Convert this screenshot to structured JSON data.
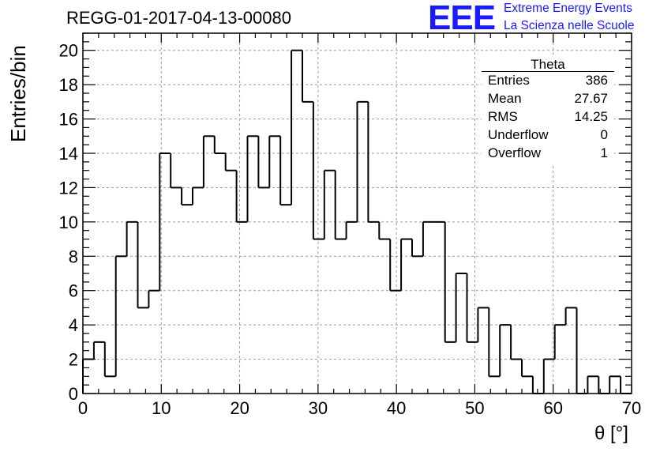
{
  "title": "REGG-01-2017-04-13-00080",
  "logo": {
    "mark": "EEE",
    "line1": "Extreme Energy Events",
    "line2": "La Scienza nelle Scuole",
    "color": "#1a1aff"
  },
  "stats": {
    "title": "Theta",
    "rows": [
      {
        "label": "Entries",
        "value": "386"
      },
      {
        "label": "Mean",
        "value": "27.67"
      },
      {
        "label": "RMS",
        "value": "14.25"
      },
      {
        "label": "Underflow",
        "value": "0"
      },
      {
        "label": "Overflow",
        "value": "1"
      }
    ]
  },
  "chart_data": {
    "type": "bar",
    "style": "step-histogram",
    "title": "REGG-01-2017-04-13-00080",
    "xlabel": "θ [°]",
    "ylabel": "Entries/bin",
    "xlim": [
      0,
      70
    ],
    "ylim": [
      0,
      21
    ],
    "grid": true,
    "bin_width": 1.4,
    "x_ticks": [
      0,
      10,
      20,
      30,
      40,
      50,
      60,
      70
    ],
    "y_ticks": [
      0,
      2,
      4,
      6,
      8,
      10,
      12,
      14,
      16,
      18,
      20
    ],
    "values": [
      2,
      3,
      1,
      8,
      10,
      5,
      6,
      14,
      12,
      11,
      12,
      15,
      14,
      13,
      10,
      15,
      12,
      15,
      11,
      20,
      17,
      9,
      13,
      9,
      10,
      17,
      10,
      9,
      6,
      9,
      8,
      10,
      10,
      3,
      7,
      3,
      5,
      1,
      4,
      2,
      1,
      0,
      2,
      4,
      5,
      0,
      1,
      0,
      1,
      0
    ]
  }
}
